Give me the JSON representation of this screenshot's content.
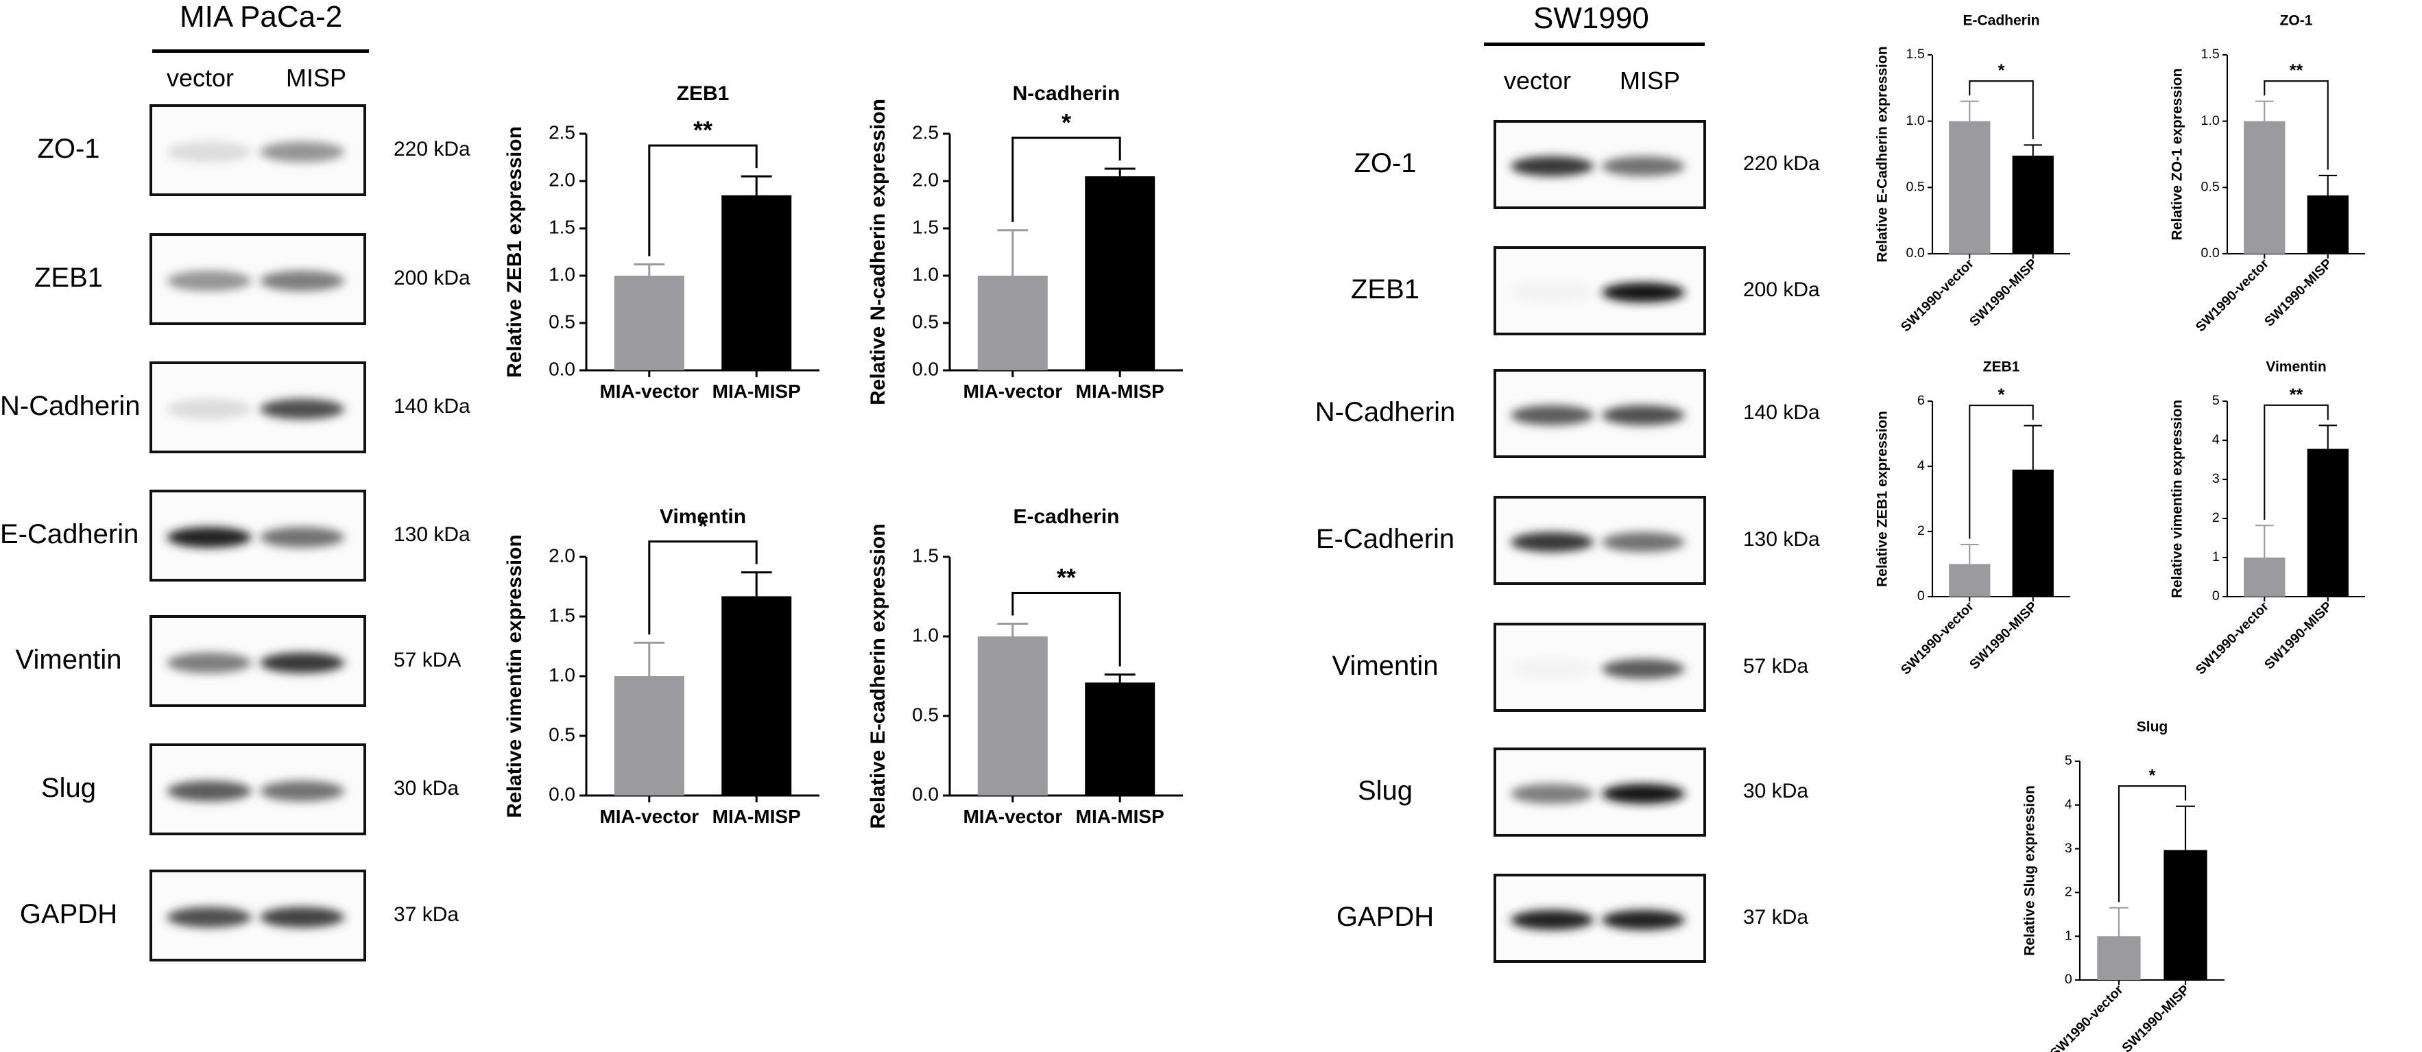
{
  "blots": [
    {
      "cell_line": "MIA PaCa-2",
      "columns": [
        "vector",
        "MISP"
      ],
      "rows": [
        {
          "protein": "ZO-1",
          "mw": "220 kDa"
        },
        {
          "protein": "ZEB1",
          "mw": "200 kDa"
        },
        {
          "protein": "N-Cadherin",
          "mw": "140 kDa"
        },
        {
          "protein": "E-Cadherin",
          "mw": "130 kDa"
        },
        {
          "protein": "Vimentin",
          "mw": "57  kDA"
        },
        {
          "protein": "Slug",
          "mw": "30  kDa"
        },
        {
          "protein": "GAPDH",
          "mw": "37  kDa"
        }
      ]
    },
    {
      "cell_line": "SW1990",
      "columns": [
        "vector",
        "MISP"
      ],
      "rows": [
        {
          "protein": "ZO-1",
          "mw": "220 kDa"
        },
        {
          "protein": "ZEB1",
          "mw": "200 kDa"
        },
        {
          "protein": "N-Cadherin",
          "mw": "140 kDa"
        },
        {
          "protein": "E-Cadherin",
          "mw": "130 kDa"
        },
        {
          "protein": "Vimentin",
          "mw": "57 kDa"
        },
        {
          "protein": "Slug",
          "mw": "30  kDa"
        },
        {
          "protein": "GAPDH",
          "mw": "37  kDa"
        }
      ]
    }
  ],
  "colors": {
    "vector_bar": "#9b9b9f",
    "misp_bar": "#000000"
  },
  "chart_data": [
    {
      "type": "bar",
      "title": "ZEB1",
      "ylabel": "Relative ZEB1 expression",
      "categories": [
        "MIA-vector",
        "MIA-MISP"
      ],
      "values": [
        1.0,
        1.85
      ],
      "errors": [
        0.12,
        0.2
      ],
      "ylim": [
        0,
        2.5
      ],
      "ticks": [
        "0.0",
        "0.5",
        "1.0",
        "1.5",
        "2.0",
        "2.5"
      ],
      "significance": "**"
    },
    {
      "type": "bar",
      "title": "N-cadherin",
      "ylabel": "Relative N-cadherin expression",
      "categories": [
        "MIA-vector",
        "MIA-MISP"
      ],
      "values": [
        1.0,
        2.05
      ],
      "errors": [
        0.48,
        0.08
      ],
      "ylim": [
        0,
        2.5
      ],
      "ticks": [
        "0.0",
        "0.5",
        "1.0",
        "1.5",
        "2.0",
        "2.5"
      ],
      "significance": "*"
    },
    {
      "type": "bar",
      "title": "Vimentin",
      "ylabel": "Relative vimentin expression",
      "categories": [
        "MIA-vector",
        "MIA-MISP"
      ],
      "values": [
        1.0,
        1.67
      ],
      "errors": [
        0.28,
        0.2
      ],
      "ylim": [
        0,
        2.0
      ],
      "ticks": [
        "0.0",
        "0.5",
        "1.0",
        "1.5",
        "2.0"
      ],
      "significance": "*"
    },
    {
      "type": "bar",
      "title": "E-cadherin",
      "ylabel": "Relative E-cadherin expression",
      "categories": [
        "MIA-vector",
        "MIA-MISP"
      ],
      "values": [
        1.0,
        0.71
      ],
      "errors": [
        0.08,
        0.05
      ],
      "ylim": [
        0,
        1.5
      ],
      "ticks": [
        "0.0",
        "0.5",
        "1.0",
        "1.5"
      ],
      "significance": "**"
    },
    {
      "type": "bar",
      "title": "E-Cadherin",
      "ylabel": "Relative E-Cadherin expression",
      "categories": [
        "SW1990-vector",
        "SW1990-MISP"
      ],
      "values": [
        1.0,
        0.74
      ],
      "errors": [
        0.15,
        0.08
      ],
      "ylim": [
        0,
        1.5
      ],
      "ticks": [
        "0.0",
        "0.5",
        "1.0",
        "1.5"
      ],
      "significance": "*"
    },
    {
      "type": "bar",
      "title": "ZO-1",
      "ylabel": "Relative ZO-1 expression",
      "categories": [
        "SW1990-vector",
        "SW1990-MISP"
      ],
      "values": [
        1.0,
        0.44
      ],
      "errors": [
        0.15,
        0.15
      ],
      "ylim": [
        0,
        1.5
      ],
      "ticks": [
        "0.0",
        "0.5",
        "1.0",
        "1.5"
      ],
      "significance": "**"
    },
    {
      "type": "bar",
      "title": "ZEB1",
      "ylabel": "Relative ZEB1 expression",
      "categories": [
        "SW1990-vector",
        "SW1990-MISP"
      ],
      "values": [
        1.0,
        3.9
      ],
      "errors": [
        0.6,
        1.35
      ],
      "ylim": [
        0,
        6
      ],
      "ticks": [
        "0",
        "2",
        "4",
        "6"
      ],
      "significance": "*"
    },
    {
      "type": "bar",
      "title": "Vimentin",
      "ylabel": "Relative vimentin expression",
      "categories": [
        "SW1990-vector",
        "SW1990-MISP"
      ],
      "values": [
        1.0,
        3.78
      ],
      "errors": [
        0.82,
        0.6
      ],
      "ylim": [
        0,
        5
      ],
      "ticks": [
        "0",
        "1",
        "2",
        "3",
        "4",
        "5"
      ],
      "significance": "**"
    },
    {
      "type": "bar",
      "title": "Slug",
      "ylabel": "Relative Slug expression",
      "categories": [
        "SW1990-vector",
        "SW1990-MISP"
      ],
      "values": [
        1.0,
        2.97
      ],
      "errors": [
        0.65,
        1.0
      ],
      "ylim": [
        0,
        5
      ],
      "ticks": [
        "0",
        "1",
        "2",
        "3",
        "4",
        "5"
      ],
      "significance": "*"
    }
  ]
}
